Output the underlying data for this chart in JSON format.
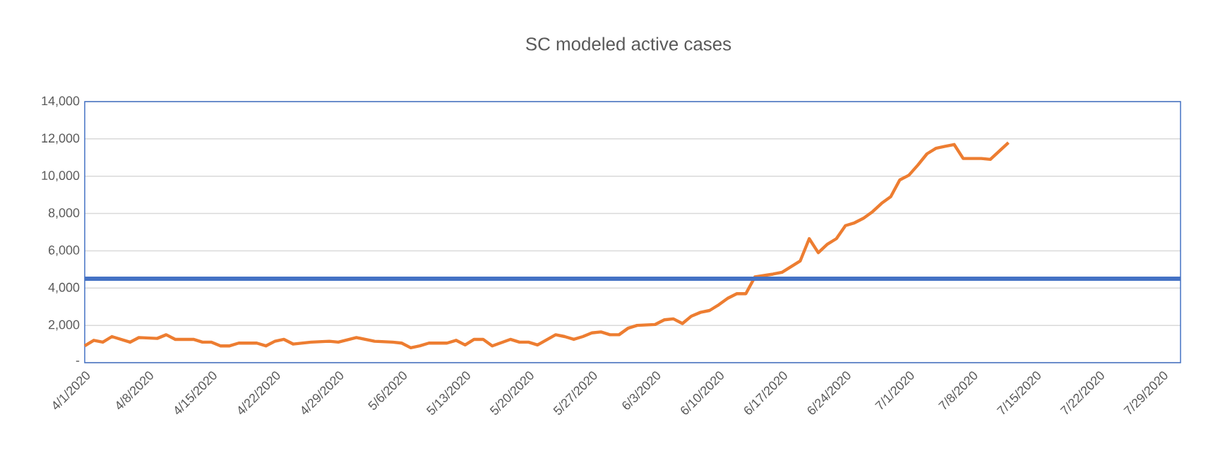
{
  "chart_data": {
    "type": "line",
    "title": "SC modeled active cases",
    "x": [
      "2020-04-01",
      "2020-04-02",
      "2020-04-03",
      "2020-04-04",
      "2020-04-06",
      "2020-04-07",
      "2020-04-09",
      "2020-04-10",
      "2020-04-11",
      "2020-04-13",
      "2020-04-14",
      "2020-04-15",
      "2020-04-16",
      "2020-04-17",
      "2020-04-18",
      "2020-04-20",
      "2020-04-21",
      "2020-04-22",
      "2020-04-23",
      "2020-04-24",
      "2020-04-26",
      "2020-04-28",
      "2020-04-29",
      "2020-05-01",
      "2020-05-03",
      "2020-05-05",
      "2020-05-06",
      "2020-05-07",
      "2020-05-08",
      "2020-05-09",
      "2020-05-11",
      "2020-05-12",
      "2020-05-13",
      "2020-05-14",
      "2020-05-15",
      "2020-05-16",
      "2020-05-18",
      "2020-05-19",
      "2020-05-20",
      "2020-05-21",
      "2020-05-23",
      "2020-05-24",
      "2020-05-25",
      "2020-05-26",
      "2020-05-27",
      "2020-05-28",
      "2020-05-29",
      "2020-05-30",
      "2020-05-31",
      "2020-06-01",
      "2020-06-03",
      "2020-06-04",
      "2020-06-05",
      "2020-06-06",
      "2020-06-07",
      "2020-06-08",
      "2020-06-09",
      "2020-06-10",
      "2020-06-11",
      "2020-06-12",
      "2020-06-13",
      "2020-06-14",
      "2020-06-16",
      "2020-06-17",
      "2020-06-18",
      "2020-06-19",
      "2020-06-20",
      "2020-06-21",
      "2020-06-22",
      "2020-06-23",
      "2020-06-24",
      "2020-06-25",
      "2020-06-26",
      "2020-06-27",
      "2020-06-28",
      "2020-06-29",
      "2020-06-30",
      "2020-07-01",
      "2020-07-02",
      "2020-07-03",
      "2020-07-04",
      "2020-07-05",
      "2020-07-06",
      "2020-07-07",
      "2020-07-08",
      "2020-07-09",
      "2020-07-10",
      "2020-07-12"
    ],
    "series": [
      {
        "color": "#ed7d31",
        "values": [
          900,
          1200,
          1100,
          1400,
          1100,
          1350,
          1300,
          1500,
          1250,
          1250,
          1100,
          1100,
          900,
          900,
          1050,
          1050,
          900,
          1150,
          1250,
          1000,
          1100,
          1150,
          1100,
          1350,
          1150,
          1100,
          1050,
          800,
          900,
          1050,
          1050,
          1200,
          950,
          1250,
          1250,
          900,
          1250,
          1100,
          1100,
          950,
          1500,
          1400,
          1250,
          1400,
          1600,
          1650,
          1500,
          1500,
          1850,
          2000,
          2050,
          2300,
          2350,
          2100,
          2500,
          2700,
          2800,
          3100,
          3450,
          3700,
          3700,
          4600,
          4750,
          4850,
          5150,
          5450,
          6650,
          5900,
          6350,
          6650,
          7350,
          7500,
          7750,
          8100,
          8550,
          8900,
          9800,
          10050,
          10600,
          11200,
          11500,
          11600,
          11700,
          10950,
          10950,
          10950,
          10900,
          11800
        ]
      }
    ],
    "ref_lines": [
      {
        "axis": "y",
        "value": 4500,
        "color": "#4472c4"
      }
    ],
    "xlim": [
      "2020-04-01",
      "2020-07-31"
    ],
    "xticks": [
      {
        "value": "2020-04-01",
        "label": "4/1/2020"
      },
      {
        "value": "2020-04-08",
        "label": "4/8/2020"
      },
      {
        "value": "2020-04-15",
        "label": "4/15/2020"
      },
      {
        "value": "2020-04-22",
        "label": "4/22/2020"
      },
      {
        "value": "2020-04-29",
        "label": "4/29/2020"
      },
      {
        "value": "2020-05-06",
        "label": "5/6/2020"
      },
      {
        "value": "2020-05-13",
        "label": "5/13/2020"
      },
      {
        "value": "2020-05-20",
        "label": "5/20/2020"
      },
      {
        "value": "2020-05-27",
        "label": "5/27/2020"
      },
      {
        "value": "2020-06-03",
        "label": "6/3/2020"
      },
      {
        "value": "2020-06-10",
        "label": "6/10/2020"
      },
      {
        "value": "2020-06-17",
        "label": "6/17/2020"
      },
      {
        "value": "2020-06-24",
        "label": "6/24/2020"
      },
      {
        "value": "2020-07-01",
        "label": "7/1/2020"
      },
      {
        "value": "2020-07-08",
        "label": "7/8/2020"
      },
      {
        "value": "2020-07-15",
        "label": "7/15/2020"
      },
      {
        "value": "2020-07-22",
        "label": "7/22/2020"
      },
      {
        "value": "2020-07-29",
        "label": "7/29/2020"
      }
    ],
    "ylim": [
      0,
      14000
    ],
    "yticks": [
      {
        "value": 0,
        "label": "-"
      },
      {
        "value": 2000,
        "label": "2,000"
      },
      {
        "value": 4000,
        "label": "4,000"
      },
      {
        "value": 6000,
        "label": "6,000"
      },
      {
        "value": 8000,
        "label": "8,000"
      },
      {
        "value": 10000,
        "label": "10,000"
      },
      {
        "value": 12000,
        "label": "12,000"
      },
      {
        "value": 14000,
        "label": "14,000"
      }
    ],
    "grid": "y",
    "legend": false,
    "marker": "none",
    "line_style": "solid"
  }
}
